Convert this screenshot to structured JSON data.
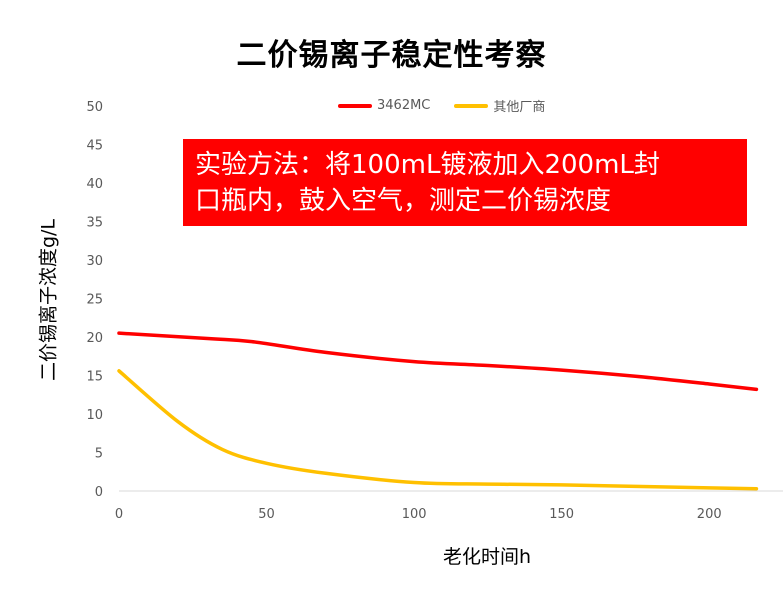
{
  "chart_data": {
    "type": "line",
    "title": "二价锡离子稳定性考察",
    "xlabel": "老化时间h",
    "ylabel": "二价锡离子浓度g/L",
    "xlim": [
      0,
      225
    ],
    "ylim": [
      0,
      50
    ],
    "x_ticks": [
      "0",
      "50",
      "100",
      "150",
      "200"
    ],
    "y_ticks": [
      "0",
      "5",
      "10",
      "15",
      "20",
      "25",
      "30",
      "35",
      "40",
      "45",
      "50"
    ],
    "legend_position": "top-center",
    "grid": false,
    "annotation": [
      "实验方法：将100mL镀液加入200mL封",
      "口瓶内，鼓入空气，测定二价锡浓度"
    ],
    "series": [
      {
        "name": "3462MC",
        "color": "#ff0000",
        "points": [
          [
            0,
            20.5
          ],
          [
            30,
            19.8
          ],
          [
            45,
            19.4
          ],
          [
            70,
            18.0
          ],
          [
            100,
            16.8
          ],
          [
            125,
            16.3
          ],
          [
            150,
            15.7
          ],
          [
            175,
            14.9
          ],
          [
            200,
            13.9
          ],
          [
            216,
            13.2
          ]
        ]
      },
      {
        "name": "其他厂商",
        "color": "#ffc000",
        "points": [
          [
            0,
            15.6
          ],
          [
            20,
            9.0
          ],
          [
            35,
            5.4
          ],
          [
            50,
            3.6
          ],
          [
            70,
            2.3
          ],
          [
            100,
            1.1
          ],
          [
            125,
            0.9
          ],
          [
            150,
            0.8
          ],
          [
            175,
            0.6
          ],
          [
            200,
            0.4
          ],
          [
            216,
            0.3
          ]
        ]
      }
    ]
  }
}
